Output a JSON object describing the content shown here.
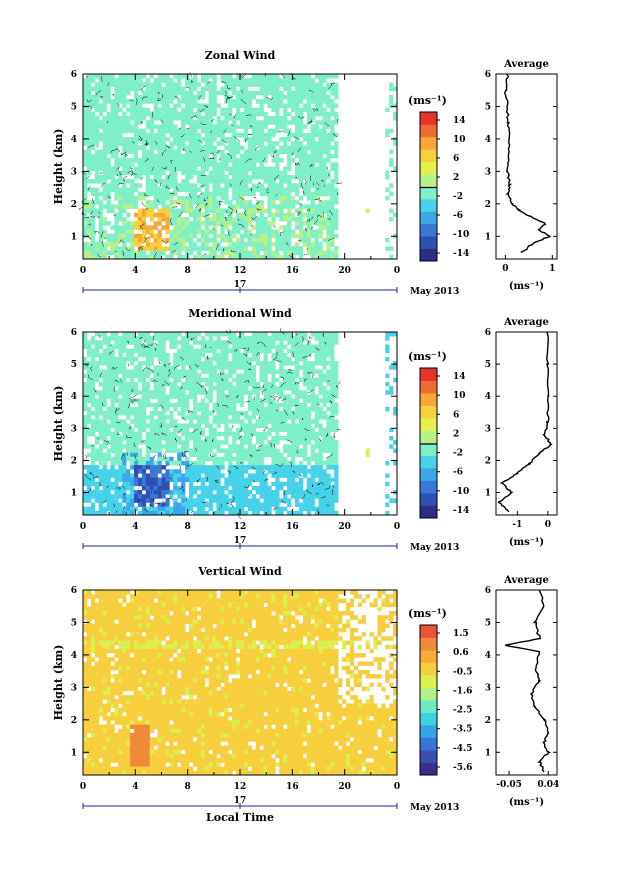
{
  "chart_data": [
    {
      "type": "heatmap",
      "title": "Zonal Wind",
      "xlabel": "",
      "ylabel": "Height (km)",
      "xlim": [
        0,
        24
      ],
      "ylim": [
        0.3,
        6
      ],
      "x_ticks": [
        "0",
        "4",
        "8",
        "12",
        "16",
        "20",
        "0"
      ],
      "y_ticks": [
        "1",
        "2",
        "3",
        "4",
        "5",
        "6"
      ],
      "date_day": "17",
      "date_label": "May 2013",
      "colorbar": {
        "unit": "(ms⁻¹)",
        "ticks": [
          "14",
          "10",
          "6",
          "2",
          "-2",
          "-6",
          "-10",
          "-14"
        ],
        "range": [
          -16,
          16
        ]
      },
      "features": [
        {
          "desc": "mostly light green values",
          "value": 0
        }
      ],
      "data_extent_hours": [
        0,
        19.6
      ],
      "profile": {
        "title": "Average",
        "xlabel": "(ms⁻¹)",
        "x_ticks": [
          "0",
          "1"
        ],
        "xlim": [
          -0.2,
          1.1
        ],
        "y_ticks": [
          "1",
          "2",
          "3",
          "4",
          "5",
          "6"
        ],
        "height": [
          0.5,
          0.8,
          1.0,
          1.2,
          1.4,
          1.6,
          1.8,
          2.0,
          2.3,
          2.6,
          3.0,
          3.4,
          4.0,
          4.5,
          5.0,
          5.5,
          6.0
        ],
        "value": [
          0.35,
          0.6,
          0.95,
          0.7,
          0.85,
          0.55,
          0.3,
          0.15,
          0.05,
          0.1,
          0.05,
          0.05,
          0.1,
          0.05,
          0.05,
          0.0,
          0.05
        ]
      }
    },
    {
      "type": "heatmap",
      "title": "Meridional Wind",
      "xlabel": "",
      "ylabel": "Height (km)",
      "xlim": [
        0,
        24
      ],
      "ylim": [
        0.3,
        6
      ],
      "x_ticks": [
        "0",
        "4",
        "8",
        "12",
        "16",
        "20",
        "0"
      ],
      "y_ticks": [
        "1",
        "2",
        "3",
        "4",
        "5",
        "6"
      ],
      "date_day": "17",
      "date_label": "May 2013",
      "colorbar": {
        "unit": "(ms⁻¹)",
        "ticks": [
          "14",
          "10",
          "6",
          "2",
          "-2",
          "-6",
          "-10",
          "-14"
        ],
        "range": [
          -16,
          16
        ]
      },
      "data_extent_hours": [
        0,
        19.6
      ],
      "profile": {
        "title": "Average",
        "xlabel": "(ms⁻¹)",
        "x_ticks": [
          "-1",
          "0"
        ],
        "xlim": [
          -1.7,
          0.3
        ],
        "y_ticks": [
          "1",
          "2",
          "3",
          "4",
          "5",
          "6"
        ],
        "height": [
          0.4,
          0.7,
          1.0,
          1.3,
          1.6,
          1.9,
          2.2,
          2.5,
          2.8,
          3.2,
          4.0,
          5.0,
          6.0
        ],
        "value": [
          -1.3,
          -1.6,
          -1.2,
          -1.5,
          -1.0,
          -0.6,
          -0.3,
          0.1,
          -0.1,
          0.0,
          0.0,
          0.0,
          0.0
        ]
      }
    },
    {
      "type": "heatmap",
      "title": "Vertical Wind",
      "xlabel": "Local Time",
      "ylabel": "Height (km)",
      "xlim": [
        0,
        24
      ],
      "ylim": [
        0.3,
        6
      ],
      "x_ticks": [
        "0",
        "4",
        "8",
        "12",
        "16",
        "20",
        "0"
      ],
      "y_ticks": [
        "1",
        "2",
        "3",
        "4",
        "5",
        "6"
      ],
      "date_day": "17",
      "date_label": "May 2013",
      "colorbar": {
        "unit": "(ms⁻¹)",
        "ticks": [
          "1.5",
          "0.6",
          "-0.5",
          "-1.6",
          "-2.5",
          "-3.5",
          "-4.5",
          "-5.6"
        ],
        "range": [
          -6.2,
          2.0
        ]
      },
      "data_extent_hours": [
        0,
        24
      ],
      "profile": {
        "title": "Average",
        "xlabel": "(ms⁻¹)",
        "x_ticks": [
          "-0.05",
          "0.04"
        ],
        "xlim": [
          -0.08,
          0.06
        ],
        "y_ticks": [
          "1",
          "2",
          "3",
          "4",
          "5",
          "6"
        ],
        "height": [
          0.4,
          0.7,
          1.0,
          1.3,
          1.6,
          2.0,
          2.4,
          2.8,
          3.2,
          3.6,
          4.1,
          4.3,
          4.5,
          5.0,
          5.5,
          6.0
        ],
        "value": [
          0.03,
          0.02,
          0.04,
          0.03,
          0.04,
          0.03,
          0.01,
          0.0,
          0.02,
          0.01,
          0.02,
          -0.06,
          0.02,
          0.01,
          0.03,
          0.02
        ]
      }
    }
  ]
}
